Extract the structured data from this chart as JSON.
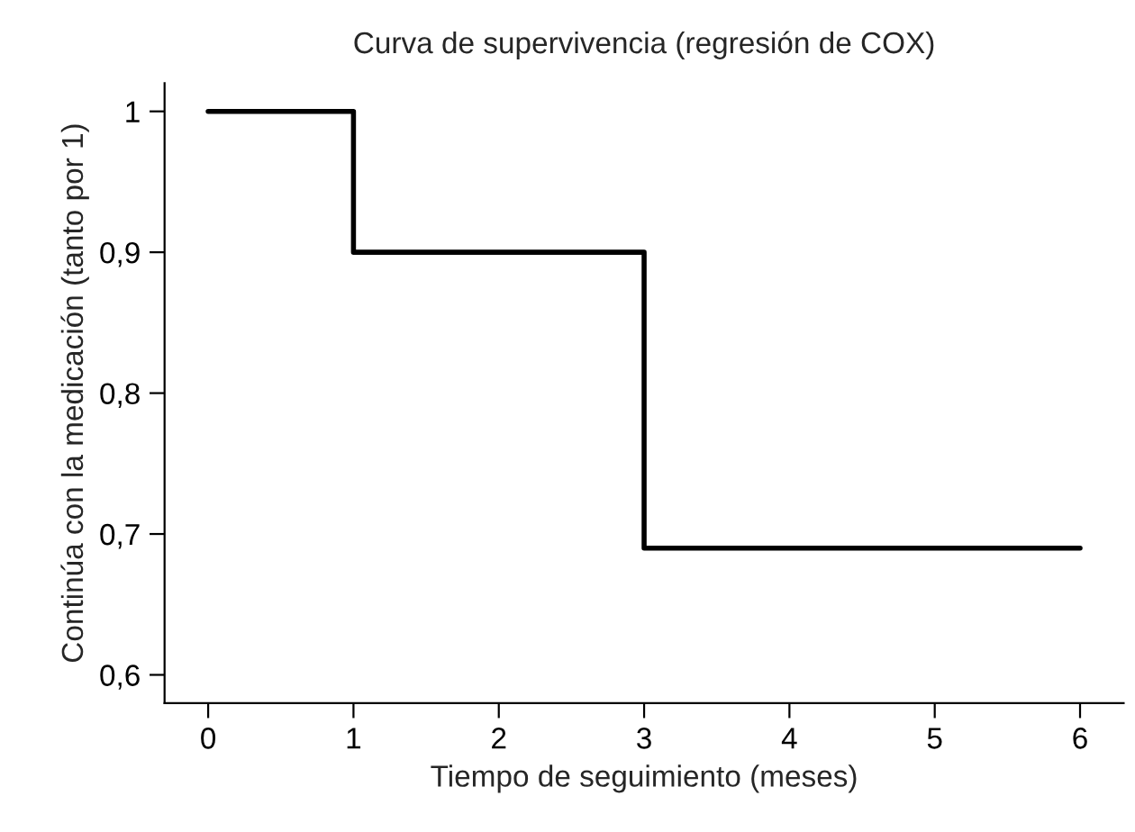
{
  "chart_data": {
    "type": "step",
    "title": "Curva de supervivencia (regresión de COX)",
    "xlabel": "Tiempo de seguimiento (meses)",
    "ylabel": "Continúa con la medicación (tanto por 1)",
    "x": [
      0,
      1,
      3,
      6
    ],
    "series": [
      {
        "color": "#000000",
        "values": [
          1,
          0.9,
          0.69,
          0.69
        ]
      }
    ],
    "xlim": [
      -0.3,
      6.3
    ],
    "ylim": [
      0.58,
      1.02
    ],
    "xticks": [
      0,
      1,
      2,
      3,
      4,
      5,
      6
    ],
    "yticks": [
      {
        "value": 0.6,
        "label": "0,6"
      },
      {
        "value": 0.7,
        "label": "0,7"
      },
      {
        "value": 0.8,
        "label": "0,8"
      },
      {
        "value": 0.9,
        "label": "0,9"
      },
      {
        "value": 1,
        "label": "1"
      }
    ],
    "grid": false,
    "legend": false
  }
}
